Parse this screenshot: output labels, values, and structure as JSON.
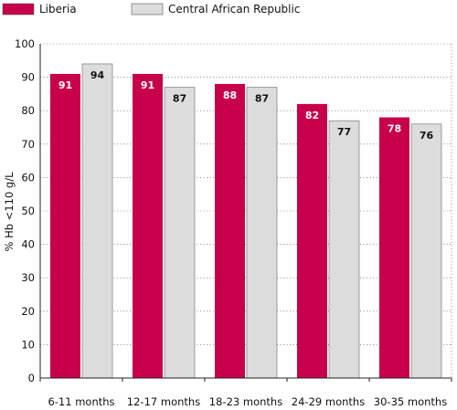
{
  "chart_data": {
    "type": "bar",
    "title": "",
    "xlabel": "",
    "ylabel": "% Hb <110 g/L",
    "ylim": [
      0,
      100
    ],
    "yticks": [
      0,
      10,
      20,
      30,
      40,
      50,
      60,
      70,
      80,
      90,
      100
    ],
    "grid": true,
    "legend_position": "top-left",
    "categories": [
      "6-11 months",
      "12-17 months",
      "18-23 months",
      "24-29 months",
      "30-35 months"
    ],
    "series": [
      {
        "name": "Liberia",
        "values": [
          91,
          91,
          88,
          82,
          78
        ],
        "color": "#c8004b",
        "label_color": "#ffffff"
      },
      {
        "name": "Central African Republic",
        "values": [
          94,
          87,
          87,
          77,
          76
        ],
        "color": "#dcdcdc",
        "label_color": "#111111"
      }
    ]
  }
}
